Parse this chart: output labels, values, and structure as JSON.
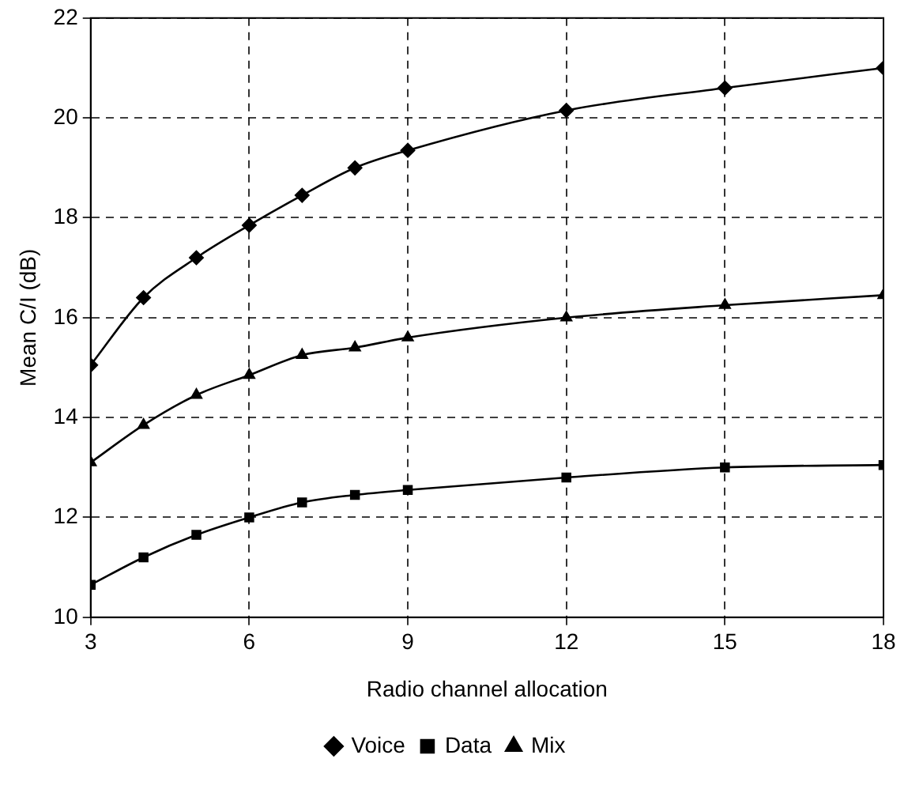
{
  "chart_data": {
    "type": "line",
    "xlabel": "Radio channel allocation",
    "ylabel": "Mean C/I (dB)",
    "x": [
      3,
      4,
      5,
      6,
      7,
      8,
      9,
      12,
      15,
      18
    ],
    "xlim": [
      3,
      18
    ],
    "xticks": [
      3,
      6,
      9,
      12,
      15,
      18
    ],
    "ylim": [
      10,
      22
    ],
    "yticks": [
      10,
      12,
      14,
      16,
      18,
      20,
      22
    ],
    "grid": true,
    "legend": "bottom",
    "line_style": "solid",
    "series": [
      {
        "name": "Voice",
        "color": "#000000",
        "marker": "diamond",
        "values": [
          15.05,
          16.4,
          17.2,
          17.85,
          18.45,
          19.0,
          19.35,
          20.15,
          20.6,
          21.0
        ]
      },
      {
        "name": "Data",
        "color": "#000000",
        "marker": "square",
        "values": [
          10.65,
          11.2,
          11.65,
          12.0,
          12.3,
          12.45,
          12.55,
          12.8,
          13.0,
          13.05
        ]
      },
      {
        "name": "Mix",
        "color": "#000000",
        "marker": "triangle",
        "values": [
          13.1,
          13.85,
          14.45,
          14.85,
          15.25,
          15.4,
          15.6,
          16.0,
          16.25,
          16.45
        ]
      }
    ]
  }
}
